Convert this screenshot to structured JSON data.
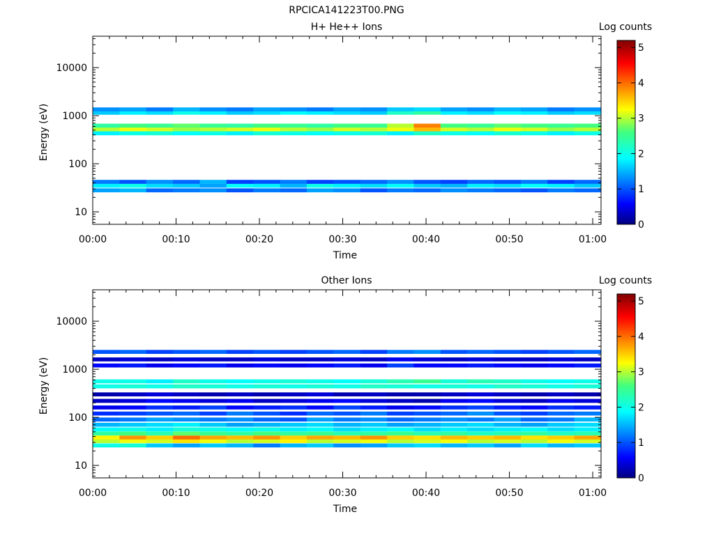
{
  "page_title": "RPCICA141223T00.PNG",
  "chart_data": [
    {
      "type": "heatmap",
      "title": "H+ He++ Ions",
      "xlabel": "Time",
      "ylabel": "Energy (eV)",
      "colorbar_label": "Log counts",
      "x_range": [
        "00:00",
        "01:01"
      ],
      "x_ticks": [
        "00:00",
        "00:10",
        "00:20",
        "00:30",
        "00:40",
        "00:50",
        "01:00"
      ],
      "y_scale": "log",
      "y_range_eV": [
        5.5,
        45000
      ],
      "y_ticks": [
        "10",
        "100",
        "1000",
        "10000"
      ],
      "colorbar_range": [
        0,
        5.2
      ],
      "colorbar_ticks": [
        "0",
        "1",
        "2",
        "3",
        "4",
        "5"
      ],
      "colormap": "jet",
      "time_columns": 19,
      "rows": [
        {
          "energy_eV": 28,
          "levels": [
            1.4,
            1.5,
            1.1,
            1.2,
            1.3,
            1.0,
            1.2,
            1.1,
            1.4,
            1.3,
            1.0,
            1.2,
            1.1,
            1.3,
            1.2,
            1.1,
            1.0,
            1.2,
            1.1
          ]
        },
        {
          "energy_eV": 35,
          "levels": [
            1.8,
            2.0,
            1.7,
            1.6,
            1.4,
            1.9,
            1.8,
            1.5,
            2.0,
            1.8,
            1.7,
            1.9,
            1.6,
            1.5,
            1.8,
            1.7,
            1.9,
            1.8,
            1.6
          ]
        },
        {
          "energy_eV": 42,
          "levels": [
            1.2,
            1.0,
            1.3,
            1.1,
            1.5,
            0.9,
            1.0,
            1.2,
            0.9,
            1.0,
            1.1,
            1.3,
            1.0,
            0.9,
            1.1,
            1.0,
            1.2,
            0.9,
            1.1
          ]
        },
        {
          "energy_eV": 430,
          "levels": [
            1.8,
            2.0,
            2.1,
            1.9,
            2.0,
            1.8,
            2.1,
            2.0,
            1.9,
            2.0,
            2.1,
            1.8,
            2.2,
            2.0,
            1.9,
            2.1,
            2.0,
            1.8,
            2.0
          ]
        },
        {
          "energy_eV": 520,
          "levels": [
            3.0,
            3.2,
            3.1,
            2.9,
            3.0,
            3.1,
            3.2,
            3.0,
            2.9,
            3.1,
            3.0,
            3.2,
            3.6,
            3.1,
            3.0,
            3.2,
            3.1,
            2.9,
            3.0
          ]
        },
        {
          "energy_eV": 620,
          "levels": [
            2.4,
            2.6,
            2.5,
            2.7,
            2.5,
            2.4,
            2.6,
            2.5,
            2.4,
            2.6,
            2.5,
            3.0,
            3.9,
            2.6,
            2.5,
            2.7,
            2.6,
            2.5,
            2.6
          ]
        },
        {
          "energy_eV": 1150,
          "levels": [
            1.6,
            1.8,
            1.7,
            2.0,
            1.8,
            1.6,
            1.7,
            1.9,
            1.8,
            1.7,
            1.6,
            2.2,
            2.4,
            1.8,
            1.7,
            1.9,
            1.8,
            1.6,
            1.7
          ]
        },
        {
          "energy_eV": 1350,
          "levels": [
            1.3,
            1.4,
            1.2,
            1.5,
            1.3,
            1.2,
            1.4,
            1.3,
            1.2,
            1.4,
            1.3,
            1.6,
            1.7,
            1.4,
            1.3,
            1.5,
            1.4,
            1.2,
            1.3
          ]
        }
      ]
    },
    {
      "type": "heatmap",
      "title": "Other Ions",
      "xlabel": "Time",
      "ylabel": "Energy (eV)",
      "colorbar_label": "Log counts",
      "x_range": [
        "00:00",
        "01:01"
      ],
      "x_ticks": [
        "00:00",
        "00:10",
        "00:20",
        "00:30",
        "00:40",
        "00:50",
        "01:00"
      ],
      "y_scale": "log",
      "y_range_eV": [
        5.5,
        45000
      ],
      "y_ticks": [
        "10",
        "100",
        "1000",
        "10000"
      ],
      "colorbar_range": [
        0,
        5.2
      ],
      "colorbar_ticks": [
        "0",
        "1",
        "2",
        "3",
        "4",
        "5"
      ],
      "colormap": "jet",
      "time_columns": 19,
      "rows": [
        {
          "energy_eV": 26,
          "levels": [
            2.0,
            2.1,
            1.6,
            1.4,
            1.6,
            1.5,
            1.2,
            1.5,
            1.6,
            1.3,
            1.4,
            1.6,
            1.7,
            1.5,
            1.6,
            1.4,
            1.7,
            1.5,
            1.6
          ]
        },
        {
          "energy_eV": 32,
          "levels": [
            3.0,
            3.2,
            3.1,
            3.4,
            3.2,
            3.0,
            3.1,
            3.3,
            3.0,
            3.1,
            3.2,
            3.0,
            3.1,
            3.2,
            3.0,
            3.1,
            3.0,
            3.2,
            3.1
          ]
        },
        {
          "energy_eV": 38,
          "levels": [
            3.3,
            3.8,
            3.5,
            4.0,
            3.7,
            3.6,
            3.8,
            3.5,
            3.7,
            3.6,
            3.8,
            3.5,
            3.4,
            3.6,
            3.5,
            3.6,
            3.4,
            3.5,
            3.7
          ]
        },
        {
          "energy_eV": 46,
          "levels": [
            2.4,
            2.6,
            2.3,
            2.7,
            2.5,
            2.4,
            2.6,
            2.4,
            2.5,
            2.3,
            2.4,
            2.5,
            2.3,
            2.4,
            2.2,
            2.3,
            2.4,
            2.2,
            2.3
          ]
        },
        {
          "energy_eV": 56,
          "levels": [
            1.9,
            2.0,
            1.8,
            2.1,
            2.0,
            1.9,
            2.0,
            1.8,
            1.9,
            1.7,
            1.8,
            1.9,
            1.7,
            1.8,
            1.7,
            1.8,
            1.9,
            1.7,
            1.8
          ]
        },
        {
          "energy_eV": 70,
          "levels": [
            1.5,
            1.6,
            1.7,
            1.8,
            1.6,
            1.4,
            1.5,
            1.6,
            1.7,
            1.5,
            1.6,
            1.4,
            1.5,
            1.6,
            1.7,
            1.5,
            1.4,
            1.6,
            1.7
          ]
        },
        {
          "energy_eV": 90,
          "levels": [
            1.1,
            1.2,
            1.4,
            1.3,
            1.2,
            1.3,
            1.1,
            1.0,
            1.4,
            1.2,
            1.3,
            1.1,
            1.2,
            1.3,
            1.2,
            1.4,
            1.1,
            1.2,
            1.5
          ]
        },
        {
          "energy_eV": 120,
          "levels": [
            0.8,
            0.9,
            1.0,
            1.1,
            0.9,
            1.2,
            1.0,
            0.8,
            1.1,
            1.0,
            1.2,
            0.9,
            1.0,
            1.1,
            1.3,
            1.0,
            0.9,
            1.1,
            1.2
          ]
        },
        {
          "energy_eV": 160,
          "levels": [
            0.5,
            0.6,
            0.8,
            0.7,
            0.9,
            0.6,
            0.7,
            0.8,
            0.6,
            0.9,
            0.7,
            0.5,
            0.6,
            0.8,
            0.9,
            0.7,
            0.6,
            0.8,
            0.7
          ]
        },
        {
          "energy_eV": 220,
          "levels": [
            0.3,
            0.4,
            0.6,
            0.5,
            0.4,
            0.5,
            0.3,
            0.4,
            0.5,
            0.6,
            0.4,
            0.3,
            0.2,
            0.5,
            0.6,
            0.4,
            0.3,
            0.5,
            0.4
          ]
        },
        {
          "energy_eV": 300,
          "levels": [
            0.2,
            0.3,
            0.4,
            0.3,
            0.2,
            0.3,
            0.2,
            0.3,
            0.4,
            0.2,
            0.3,
            0.2,
            0.2,
            0.3,
            0.4,
            0.3,
            0.2,
            0.3,
            0.2
          ]
        },
        {
          "energy_eV": 440,
          "levels": [
            2.0,
            2.1,
            2.0,
            2.2,
            2.1,
            2.0,
            2.1,
            2.0,
            2.1,
            2.0,
            2.2,
            2.1,
            2.0,
            2.1,
            2.0,
            2.2,
            2.1,
            2.0,
            2.1
          ]
        },
        {
          "energy_eV": 560,
          "levels": [
            2.0,
            2.0,
            1.8,
            2.2,
            2.0,
            1.9,
            2.0,
            2.1,
            2.0,
            1.9,
            2.1,
            2.3,
            2.5,
            2.1,
            2.3,
            2.2,
            2.0,
            1.9,
            2.0
          ]
        },
        {
          "energy_eV": 1200,
          "levels": [
            0.6,
            0.7,
            0.5,
            0.6,
            0.7,
            0.5,
            0.6,
            0.5,
            0.6,
            0.7,
            0.5,
            0.9,
            0.6,
            0.6,
            0.7,
            0.6,
            0.5,
            0.6,
            0.7
          ]
        },
        {
          "energy_eV": 1600,
          "levels": [
            0.3,
            0.4,
            0.3,
            0.4,
            0.3,
            0.3,
            0.4,
            0.3,
            0.3,
            0.4,
            0.3,
            0.5,
            0.4,
            0.3,
            0.4,
            0.3,
            0.3,
            0.4,
            0.3
          ]
        },
        {
          "energy_eV": 2300,
          "levels": [
            1.0,
            1.1,
            0.9,
            1.0,
            1.1,
            0.9,
            1.0,
            0.9,
            1.0,
            1.1,
            0.9,
            1.2,
            1.3,
            1.0,
            1.1,
            1.0,
            0.9,
            1.0,
            1.1
          ]
        }
      ]
    }
  ]
}
